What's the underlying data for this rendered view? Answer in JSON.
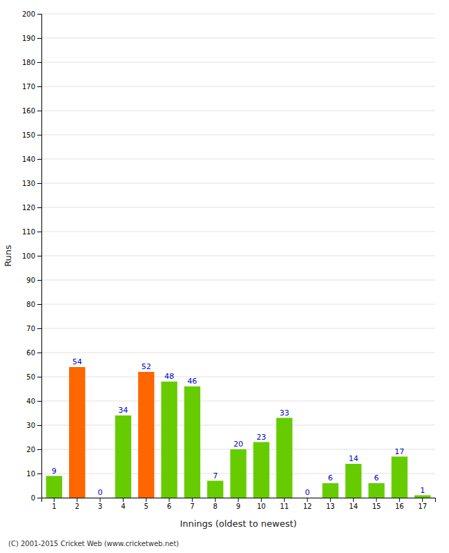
{
  "chart_data": {
    "type": "bar",
    "categories": [
      "1",
      "2",
      "3",
      "4",
      "5",
      "6",
      "7",
      "8",
      "9",
      "10",
      "11",
      "12",
      "13",
      "14",
      "15",
      "16",
      "17"
    ],
    "values": [
      9,
      54,
      0,
      34,
      52,
      48,
      46,
      7,
      20,
      23,
      33,
      0,
      6,
      14,
      6,
      17,
      1
    ],
    "colors": [
      "#66cc00",
      "#ff6600",
      "#66cc00",
      "#66cc00",
      "#ff6600",
      "#66cc00",
      "#66cc00",
      "#66cc00",
      "#66cc00",
      "#66cc00",
      "#66cc00",
      "#66cc00",
      "#66cc00",
      "#66cc00",
      "#66cc00",
      "#66cc00",
      "#66cc00"
    ],
    "xlabel": "Innings (oldest to newest)",
    "ylabel": "Runs",
    "ylim": [
      0,
      200
    ],
    "yticks": [
      0,
      10,
      20,
      30,
      40,
      50,
      60,
      70,
      80,
      90,
      100,
      110,
      120,
      130,
      140,
      150,
      160,
      170,
      180,
      190,
      200
    ],
    "grid": true,
    "data_labels": true,
    "annotations": [
      "(C) 2001-2015 Cricket Web (www.cricketweb.net)"
    ]
  }
}
